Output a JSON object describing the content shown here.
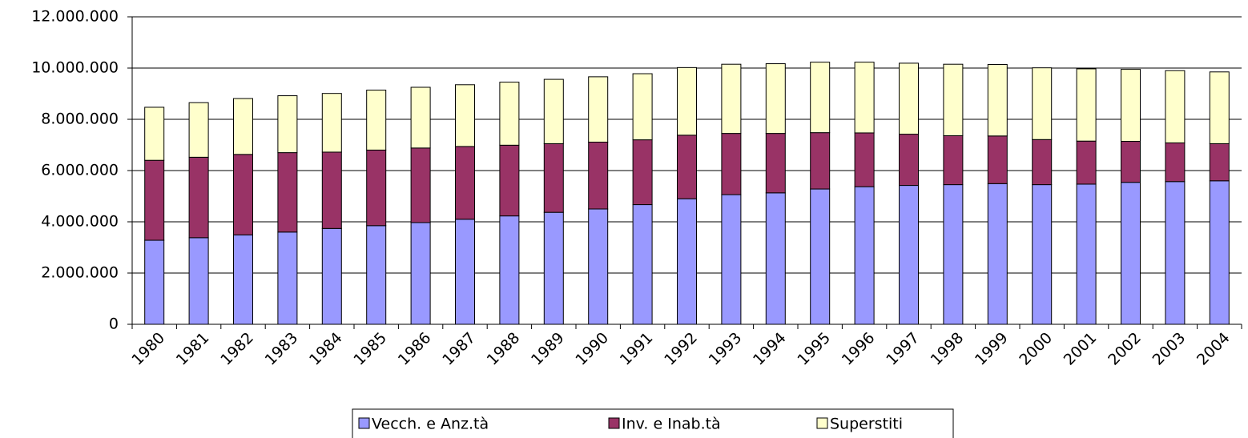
{
  "chart_data": {
    "type": "stacked-bar",
    "categories": [
      "1980",
      "1981",
      "1982",
      "1983",
      "1984",
      "1985",
      "1986",
      "1987",
      "1988",
      "1989",
      "1990",
      "1991",
      "1992",
      "1993",
      "1994",
      "1995",
      "1996",
      "1997",
      "1998",
      "1999",
      "2000",
      "2001",
      "2002",
      "2003",
      "2004"
    ],
    "series": [
      {
        "name": "Vecch. e Anz.tà",
        "color": "#9999ff",
        "values": [
          3280000,
          3380000,
          3490000,
          3600000,
          3740000,
          3850000,
          3970000,
          4100000,
          4230000,
          4370000,
          4500000,
          4670000,
          4900000,
          5060000,
          5130000,
          5280000,
          5370000,
          5420000,
          5450000,
          5490000,
          5450000,
          5470000,
          5540000,
          5570000,
          5600000
        ]
      },
      {
        "name": "Inv. e Inab.tà",
        "color": "#993366",
        "values": [
          3120000,
          3140000,
          3140000,
          3100000,
          2980000,
          2950000,
          2910000,
          2840000,
          2760000,
          2680000,
          2610000,
          2530000,
          2480000,
          2390000,
          2320000,
          2200000,
          2100000,
          2000000,
          1910000,
          1860000,
          1760000,
          1680000,
          1600000,
          1510000,
          1450000
        ]
      },
      {
        "name": "Superstiti",
        "color": "#ffffcc",
        "values": [
          2070000,
          2130000,
          2180000,
          2220000,
          2290000,
          2340000,
          2370000,
          2410000,
          2460000,
          2510000,
          2550000,
          2580000,
          2640000,
          2700000,
          2720000,
          2750000,
          2760000,
          2770000,
          2790000,
          2790000,
          2800000,
          2820000,
          2810000,
          2820000,
          2800000
        ]
      }
    ],
    "ylim": [
      0,
      12000000
    ],
    "yticks": [
      0,
      {
        "value": 2000000,
        "label": "2.000.000"
      },
      {
        "value": 4000000,
        "label": "4.000.000"
      },
      {
        "value": 6000000,
        "label": "6.000.000"
      },
      {
        "value": 8000000,
        "label": "8.000.000"
      },
      {
        "value": 10000000,
        "label": "10.000.000"
      },
      {
        "value": 12000000,
        "label": "12.000.000"
      }
    ],
    "grid": true,
    "legend": "bottom"
  }
}
